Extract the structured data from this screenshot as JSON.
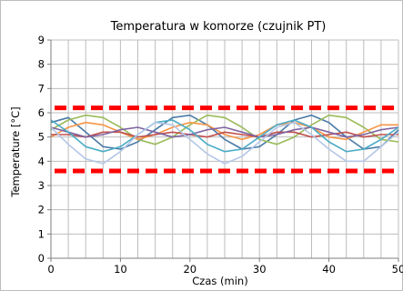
{
  "chart_data": {
    "type": "line",
    "title": "Temperatura w komorze (czujnik PT)",
    "xlabel": "Czas (min)",
    "ylabel": "Temperature [°C]",
    "xlim": [
      0,
      50
    ],
    "ylim": [
      0,
      9
    ],
    "x_ticks": [
      "0",
      "10",
      "20",
      "30",
      "40",
      "50"
    ],
    "y_ticks": [
      "0",
      "1",
      "2",
      "3",
      "4",
      "5",
      "6",
      "7",
      "8",
      "9"
    ],
    "grid": true,
    "grid_x_minor_step": 2.5,
    "legend": "none",
    "limits": [
      {
        "y": 6.2,
        "color": "#ff0000",
        "style": "dashed"
      },
      {
        "y": 3.6,
        "color": "#ff0000",
        "style": "dashed"
      }
    ],
    "series": [
      {
        "color": "#4a7ba7",
        "x": [
          0,
          2.5,
          5,
          7.5,
          10,
          12.5,
          15,
          17.5,
          20,
          22.5,
          25,
          27.5,
          30,
          32.5,
          35,
          37.5,
          40,
          42.5,
          45,
          47.5,
          50
        ],
        "y": [
          5.6,
          5.8,
          5.2,
          4.6,
          4.5,
          4.8,
          5.3,
          5.8,
          5.9,
          5.5,
          4.9,
          4.5,
          4.6,
          5.1,
          5.7,
          5.9,
          5.6,
          5.0,
          4.5,
          4.6,
          5.3
        ]
      },
      {
        "color": "#9bbb59",
        "x": [
          0,
          2.5,
          5,
          7.5,
          10,
          12.5,
          15,
          17.5,
          20,
          22.5,
          25,
          27.5,
          30,
          32.5,
          35,
          37.5,
          40,
          42.5,
          45,
          47.5,
          50
        ],
        "y": [
          5.3,
          5.7,
          5.9,
          5.8,
          5.4,
          4.9,
          4.7,
          5.0,
          5.5,
          5.9,
          5.8,
          5.4,
          4.9,
          4.7,
          5.0,
          5.5,
          5.9,
          5.8,
          5.4,
          4.9,
          4.8
        ]
      },
      {
        "color": "#f79646",
        "x": [
          0,
          2.5,
          5,
          7.5,
          10,
          12.5,
          15,
          17.5,
          20,
          22.5,
          25,
          27.5,
          30,
          32.5,
          35,
          37.5,
          40,
          42.5,
          45,
          47.5,
          50
        ],
        "y": [
          5.0,
          5.4,
          5.6,
          5.5,
          5.2,
          4.9,
          5.1,
          5.4,
          5.6,
          5.5,
          5.1,
          4.9,
          5.1,
          5.5,
          5.6,
          5.4,
          5.0,
          4.9,
          5.2,
          5.5,
          5.5
        ]
      },
      {
        "color": "#c0504d",
        "x": [
          0,
          2.5,
          5,
          7.5,
          10,
          12.5,
          15,
          17.5,
          20,
          22.5,
          25,
          27.5,
          30,
          32.5,
          35,
          37.5,
          40,
          42.5,
          45,
          47.5,
          50
        ],
        "y": [
          5.1,
          5.1,
          5.0,
          5.2,
          5.2,
          5.0,
          5.1,
          5.2,
          5.1,
          5.0,
          5.2,
          5.1,
          5.0,
          5.2,
          5.2,
          5.0,
          5.1,
          5.2,
          5.0,
          5.1,
          5.1
        ]
      },
      {
        "color": "#8064a2",
        "x": [
          0,
          2.5,
          5,
          7.5,
          10,
          12.5,
          15,
          17.5,
          20,
          22.5,
          25,
          27.5,
          30,
          32.5,
          35,
          37.5,
          40,
          42.5,
          45,
          47.5,
          50
        ],
        "y": [
          5.4,
          5.2,
          5.0,
          5.1,
          5.3,
          5.4,
          5.2,
          5.0,
          5.1,
          5.3,
          5.4,
          5.2,
          5.0,
          5.1,
          5.3,
          5.4,
          5.2,
          5.0,
          5.1,
          5.3,
          5.4
        ]
      },
      {
        "color": "#4bacc6",
        "x": [
          0,
          2.5,
          5,
          7.5,
          10,
          12.5,
          15,
          17.5,
          20,
          22.5,
          25,
          27.5,
          30,
          32.5,
          35,
          37.5,
          40,
          42.5,
          45,
          47.5,
          50
        ],
        "y": [
          5.7,
          5.2,
          4.6,
          4.4,
          4.6,
          5.1,
          5.6,
          5.7,
          5.3,
          4.7,
          4.4,
          4.5,
          5.0,
          5.5,
          5.7,
          5.4,
          4.8,
          4.4,
          4.5,
          4.9,
          5.4
        ]
      },
      {
        "color": "#b4c7e7",
        "x": [
          0,
          2.5,
          5,
          7.5,
          10,
          12.5,
          15,
          17.5,
          20,
          22.5,
          25,
          27.5,
          30,
          32.5,
          35,
          37.5,
          40,
          42.5,
          45,
          47.5,
          50
        ],
        "y": [
          5.4,
          4.7,
          4.1,
          3.9,
          4.4,
          5.1,
          5.6,
          5.5,
          4.9,
          4.3,
          3.9,
          4.2,
          4.8,
          5.4,
          5.6,
          5.1,
          4.5,
          4.0,
          4.0,
          4.6,
          5.2
        ]
      }
    ]
  }
}
